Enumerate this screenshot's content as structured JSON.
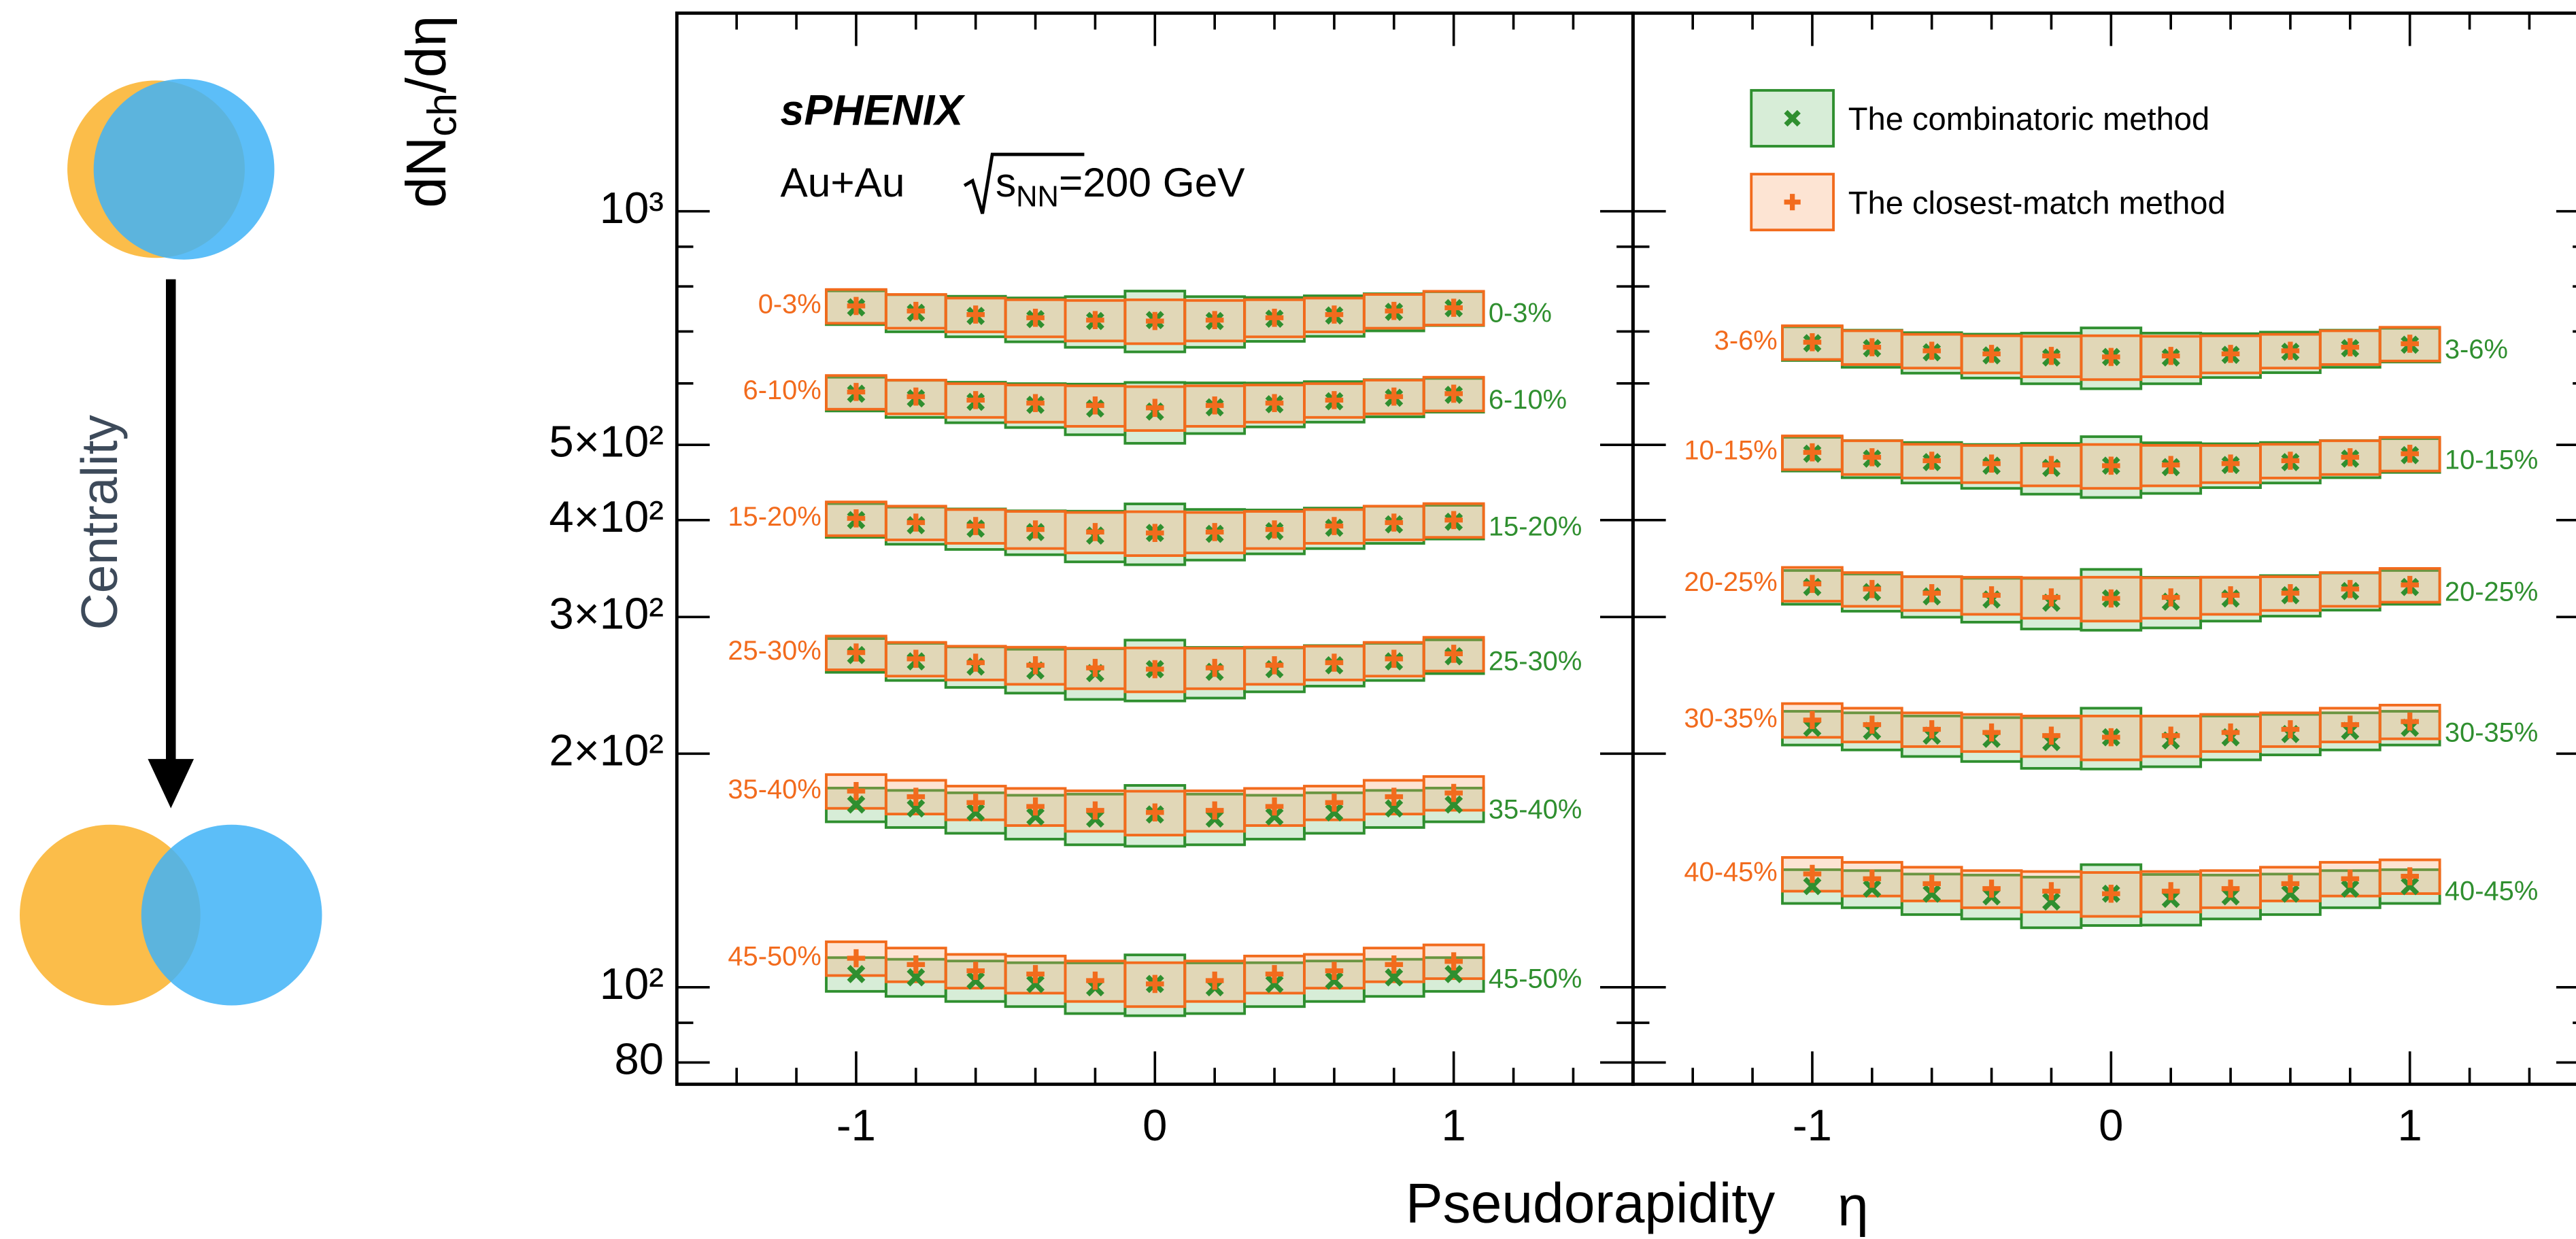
{
  "chart_data": {
    "type": "scatter",
    "log_y": true,
    "y_label": {
      "main": "dN",
      "sub": "ch",
      "rest": "/dη"
    },
    "x_label": {
      "text": "Pseudorapidity",
      "symbol": "η"
    },
    "experiment": "sPHENIX",
    "system": "Au+Au",
    "energy": {
      "var": "s",
      "sub": "NN",
      "rest": "=200 GeV"
    },
    "ylim": [
      75,
      1800
    ],
    "yticks": [
      {
        "value": 1000,
        "label": "10³"
      },
      {
        "value": 500,
        "label": "5×10²"
      },
      {
        "value": 400,
        "label": "4×10²"
      },
      {
        "value": 300,
        "label": "3×10²"
      },
      {
        "value": 200,
        "label": "2×10²"
      },
      {
        "value": 100,
        "label": "10²"
      },
      80
    ],
    "yminor": [
      90,
      600,
      700,
      800,
      900
    ],
    "xlim": [
      -1.6,
      1.6
    ],
    "xticks": [
      -1,
      0,
      1
    ],
    "xminor": [
      -1.4,
      -1.2,
      -0.8,
      -0.6,
      -0.4,
      -0.2,
      0.2,
      0.4,
      0.6,
      0.8,
      1.2,
      1.4
    ],
    "x": [
      -1,
      -0.8,
      -0.6,
      -0.4,
      -0.2,
      0,
      0.2,
      0.4,
      0.6,
      0.8,
      1
    ],
    "methods": [
      {
        "name": "The combinatoric method",
        "color": "#2f8f2f",
        "fill": "#7cc47c",
        "marker": "x",
        "errors_pct": [
          5,
          5.5,
          6,
          6.5,
          7.5,
          9,
          7.5,
          6.5,
          6,
          5.5,
          5
        ]
      },
      {
        "name": "The closest-match method",
        "color": "#f26b1d",
        "fill": "#f7a46c",
        "marker": "+",
        "errors_pct": [
          5,
          5,
          5,
          5.5,
          6,
          6.5,
          6,
          5.5,
          5,
          5,
          5
        ]
      }
    ],
    "panels": [
      {
        "centralities": [
          {
            "label": "0-3%",
            "series": [
              {
                "values": [
                  752,
                  740,
                  733,
                  726,
                  722,
                  724,
                  722,
                  727,
                  734,
                  742,
                  750
                ]
              },
              {
                "values": [
                  755,
                  744,
                  736,
                  729,
                  724,
                  722,
                  724,
                  729,
                  736,
                  744,
                  751
                ]
              }
            ]
          },
          {
            "label": "6-10%",
            "series": [
              {
                "values": [
                  582,
                  574,
                  568,
                  563,
                  557,
                  552,
                  559,
                  564,
                  569,
                  575,
                  580
                ]
              },
              {
                "values": [
                  585,
                  577,
                  571,
                  566,
                  562,
                  558,
                  562,
                  566,
                  571,
                  577,
                  582
                ]
              }
            ]
          },
          {
            "label": "15-20%",
            "series": [
              {
                "values": [
                  400,
                  394,
                  390,
                  386,
                  382,
                  385,
                  384,
                  387,
                  391,
                  395,
                  398
                ]
              },
              {
                "values": [
                  402,
                  397,
                  393,
                  389,
                  386,
                  385,
                  386,
                  389,
                  393,
                  397,
                  400
                ]
              }
            ]
          },
          {
            "label": "25-30%",
            "series": [
              {
                "values": [
                  268,
                  263,
                  259,
                  256,
                  254,
                  257,
                  255,
                  257,
                  260,
                  263,
                  267
                ]
              },
              {
                "values": [
                  270,
                  265,
                  262,
                  260,
                  258,
                  257,
                  258,
                  260,
                  262,
                  265,
                  269
                ]
              }
            ]
          },
          {
            "label": "35-40%",
            "series": [
              {
                "values": [
                  172,
                  170,
                  168,
                  166,
                  165,
                  167,
                  165,
                  166,
                  168,
                  170,
                  172
                ]
              },
              {
                "values": [
                  179,
                  176,
                  173,
                  171,
                  169,
                  168,
                  169,
                  171,
                  173,
                  176,
                  178
                ]
              }
            ]
          },
          {
            "label": "45-50%",
            "series": [
              {
                "values": [
                  104,
                  103,
                  102,
                  101,
                  100,
                  101,
                  100,
                  101,
                  102,
                  103,
                  104
                ]
              },
              {
                "values": [
                  109,
                  107,
                  105,
                  104,
                  102,
                  101,
                  102,
                  104,
                  105,
                  107,
                  108
                ]
              }
            ]
          }
        ]
      },
      {
        "centralities": [
          {
            "label": "3-6%",
            "series": [
              {
                "values": [
                  676,
                  666,
                  658,
                  652,
                  648,
                  649,
                  648,
                  653,
                  659,
                  666,
                  673
                ]
              },
              {
                "values": [
                  678,
                  668,
                  661,
                  655,
                  651,
                  649,
                  651,
                  655,
                  661,
                  668,
                  675
                ]
              }
            ]
          },
          {
            "label": "10-15%",
            "series": [
              {
                "values": [
                  487,
                  480,
                  475,
                  470,
                  467,
                  470,
                  468,
                  471,
                  475,
                  480,
                  485
                ]
              },
              {
                "values": [
                  489,
                  482,
                  477,
                  473,
                  471,
                  470,
                  471,
                  473,
                  477,
                  482,
                  487
                ]
              }
            ]
          },
          {
            "label": "20-25%",
            "series": [
              {
                "values": [
                  328,
                  323,
                  319,
                  316,
                  313,
                  317,
                  314,
                  317,
                  320,
                  324,
                  328
                ]
              },
              {
                "values": [
                  331,
                  326,
                  322,
                  320,
                  318,
                  317,
                  318,
                  320,
                  322,
                  326,
                  330
                ]
              }
            ]
          },
          {
            "label": "30-35%",
            "series": [
              {
                "values": [
                  216,
                  214,
                  211,
                  209,
                  207,
                  210,
                  208,
                  210,
                  212,
                  214,
                  216
                ]
              },
              {
                "values": [
                  221,
                  218,
                  215,
                  213,
                  211,
                  210,
                  211,
                  213,
                  215,
                  218,
                  220
                ]
              }
            ]
          },
          {
            "label": "40-45%",
            "series": [
              {
                "values": [
                  135,
                  134,
                  132,
                  131,
                  129,
                  132,
                  130,
                  131,
                  132,
                  134,
                  135
                ]
              },
              {
                "values": [
                  140,
                  138,
                  136,
                  134,
                  133,
                  132,
                  133,
                  134,
                  136,
                  138,
                  139
                ]
              }
            ]
          }
        ]
      }
    ]
  },
  "diagram": {
    "arrow_label": "Centrality"
  }
}
